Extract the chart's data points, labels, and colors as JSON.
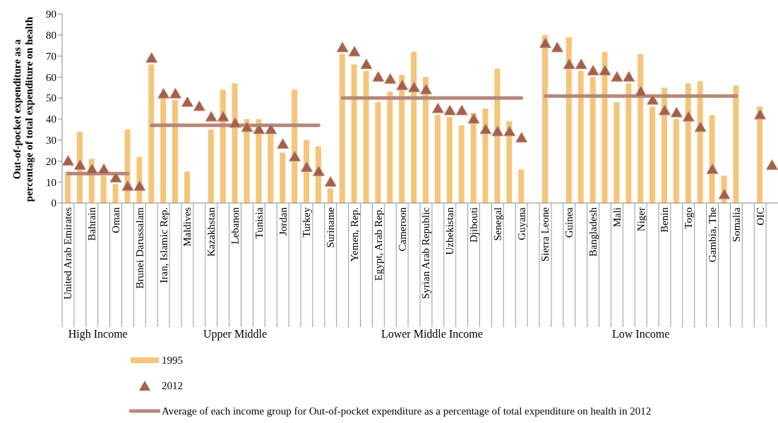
{
  "chart_data": {
    "type": "bar",
    "ylabel": "Out-of-pocket expenditure as a percentage of total expenditure on health",
    "categories": [
      "United Arab Emirates",
      null,
      "Bahrain",
      null,
      "Oman",
      null,
      "Brunei Darussalam",
      null,
      "Iran, Islamic Rep.",
      null,
      "Maldives",
      null,
      "Kazakhstan",
      null,
      "Lebanon",
      null,
      "Tunisia",
      null,
      "Jordan",
      null,
      "Turkey",
      null,
      "Suriname",
      null,
      "Yemen, Rep.",
      null,
      "Egypt, Arab Rep.",
      null,
      "Cameroon",
      null,
      "Syrian Arab Republic",
      null,
      "Uzbekistan",
      null,
      "Djibouti",
      null,
      "Senegal",
      null,
      "Guyana",
      null,
      "Sierra Leone",
      null,
      "Guinea",
      null,
      "Bangladesh",
      null,
      "Mali",
      null,
      "Niger",
      null,
      "Benin",
      null,
      "Togo",
      null,
      "Gambia, The",
      null,
      "Somalia",
      null,
      "OIC",
      null
    ],
    "series": [
      {
        "name": "1995",
        "color": "#f5c57a",
        "values": [
          15,
          34,
          21,
          13,
          9,
          35,
          22,
          66,
          50,
          49,
          15,
          null,
          35,
          54,
          57,
          40,
          40,
          33,
          24,
          54,
          30,
          27,
          7,
          71,
          66,
          63,
          48,
          53,
          61,
          72,
          60,
          42,
          41,
          37,
          43,
          45,
          64,
          39,
          16,
          null,
          80,
          null,
          79,
          63,
          60,
          72,
          48,
          57,
          71,
          46,
          55,
          40,
          57,
          58,
          42,
          13,
          56,
          null,
          46,
          null
        ]
      },
      {
        "name": "2012",
        "type": "scatter",
        "marker": "triangle",
        "color": "#a5604a",
        "values": [
          20,
          18,
          16,
          16,
          12,
          8,
          8,
          69,
          52,
          52,
          48,
          46,
          41,
          41,
          38,
          36,
          35,
          35,
          28,
          22,
          17,
          15,
          10,
          74,
          72,
          66,
          60,
          59,
          56,
          55,
          54,
          45,
          44,
          44,
          40,
          35,
          34,
          34,
          31,
          null,
          76,
          74,
          66,
          66,
          63,
          63,
          60,
          60,
          53,
          49,
          44,
          43,
          41,
          36,
          16,
          4,
          null,
          null,
          42,
          18
        ]
      },
      {
        "name": "Average of each income group for Out-of-pocket expenditure as a percentage of total expenditure on health in 2012",
        "type": "line",
        "color": "#b5877a",
        "values": [
          14,
          14,
          14,
          14,
          14,
          14,
          null,
          37,
          37,
          37,
          37,
          37,
          37,
          37,
          37,
          37,
          37,
          37,
          37,
          37,
          37,
          37,
          null,
          50,
          50,
          50,
          50,
          50,
          50,
          50,
          50,
          50,
          50,
          50,
          50,
          50,
          50,
          50,
          50,
          null,
          51,
          51,
          51,
          51,
          51,
          51,
          51,
          51,
          51,
          51,
          51,
          51,
          51,
          51,
          51,
          51,
          51,
          null,
          null,
          null
        ]
      }
    ],
    "annotations": [
      "High Income",
      "Upper Middle",
      "Lower Middle Income",
      "Low Income"
    ],
    "ylim": [
      0,
      90
    ],
    "yticks": [
      0,
      10,
      20,
      30,
      40,
      50,
      60,
      70,
      80,
      90
    ],
    "legend": "bottom"
  }
}
